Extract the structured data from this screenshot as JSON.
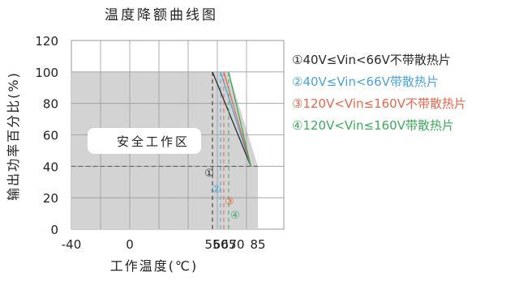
{
  "chart_data": {
    "type": "line",
    "title": "温度降额曲线图",
    "xlabel": "工作温度(℃)",
    "ylabel": "输出功率百分比(%)",
    "xlim": [
      -40,
      85
    ],
    "ylim": [
      0,
      120
    ],
    "x_ticks": [
      "-40",
      "0",
      "55",
      "60",
      "65",
      "70",
      "85"
    ],
    "y_ticks": [
      "0",
      "20",
      "40",
      "60",
      "80",
      "100",
      "120"
    ],
    "grid": true,
    "safe_area_label": "安全工作区",
    "legend_position": "right",
    "series": [
      {
        "name": "①40V≤Vin<66V不带散热片",
        "marker": "①",
        "color": "#2b2b2b",
        "x": [
          -40,
          55,
          80
        ],
        "y": [
          100,
          100,
          40
        ]
      },
      {
        "name": "②40V≤Vin<66V带散热片",
        "marker": "②",
        "color": "#4aa3df",
        "x": [
          -40,
          60,
          80
        ],
        "y": [
          100,
          100,
          40
        ]
      },
      {
        "name": "③120V<Vin≤160V不带散热片",
        "marker": "③",
        "color": "#e8664a",
        "x": [
          -40,
          62,
          80
        ],
        "y": [
          100,
          100,
          40
        ]
      },
      {
        "name": "④120V<Vin≤160V带散热片",
        "marker": "④",
        "color": "#3daa5c",
        "x": [
          -40,
          65,
          80
        ],
        "y": [
          100,
          100,
          40
        ]
      }
    ]
  }
}
